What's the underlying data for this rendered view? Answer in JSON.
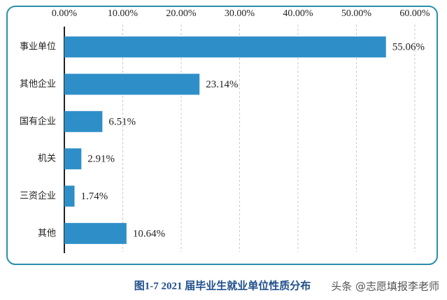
{
  "chart_data": {
    "type": "bar",
    "orientation": "horizontal",
    "categories": [
      "事业单位",
      "其他企业",
      "国有企业",
      "机关",
      "三资企业",
      "其他"
    ],
    "values": [
      55.06,
      23.14,
      6.51,
      2.91,
      1.74,
      10.64
    ],
    "value_labels": [
      "55.06%",
      "23.14%",
      "6.51%",
      "2.91%",
      "1.74%",
      "10.64%"
    ],
    "color": "#2e8fc8",
    "xlim": [
      0,
      60
    ],
    "xticks": [
      {
        "value": 0,
        "label": "0.00%"
      },
      {
        "value": 10,
        "label": "10.00%"
      },
      {
        "value": 20,
        "label": "20.00%"
      },
      {
        "value": 30,
        "label": "30.00%"
      },
      {
        "value": 40,
        "label": "40.00%"
      },
      {
        "value": 50,
        "label": "50.00%"
      },
      {
        "value": 60,
        "label": "60.00%"
      }
    ],
    "grid": true,
    "caption": "图1-7   2021 届毕业生就业单位性质分布",
    "watermark": "头条 @志愿填报李老师"
  }
}
